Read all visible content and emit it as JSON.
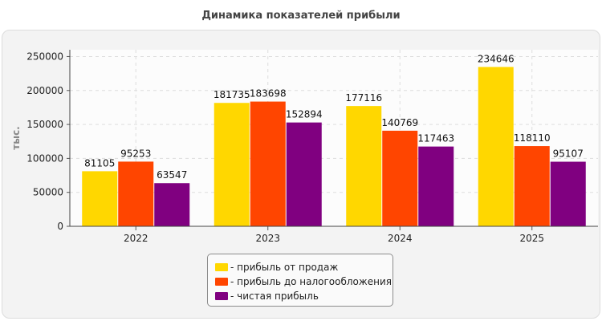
{
  "chart_data": {
    "type": "bar",
    "title": "Динамика показателей прибыли",
    "ylabel": "тыс.",
    "xlabel": "",
    "ylim": [
      0,
      260000
    ],
    "yticks": [
      0,
      50000,
      100000,
      150000,
      200000,
      250000
    ],
    "grid": true,
    "legend_position": "bottom-center",
    "categories": [
      "2022",
      "2023",
      "2024",
      "2025"
    ],
    "series": [
      {
        "name": "- прибыль от продаж",
        "color": "#ffd700",
        "values": [
          81105,
          181735,
          177116,
          234646
        ],
        "labels": [
          "81105",
          "181735",
          "177116",
          "234646"
        ]
      },
      {
        "name": "- прибыль до налогообложения",
        "color": "#ff4500",
        "values": [
          95253,
          183698,
          140769,
          118110
        ],
        "labels": [
          "95253",
          "183698",
          "140769",
          "118110"
        ]
      },
      {
        "name": "- чистая прибыль",
        "color": "#800080",
        "values": [
          63547,
          152894,
          117463,
          95107
        ],
        "labels": [
          "63547",
          "152894",
          "117463",
          "95107"
        ]
      }
    ]
  }
}
